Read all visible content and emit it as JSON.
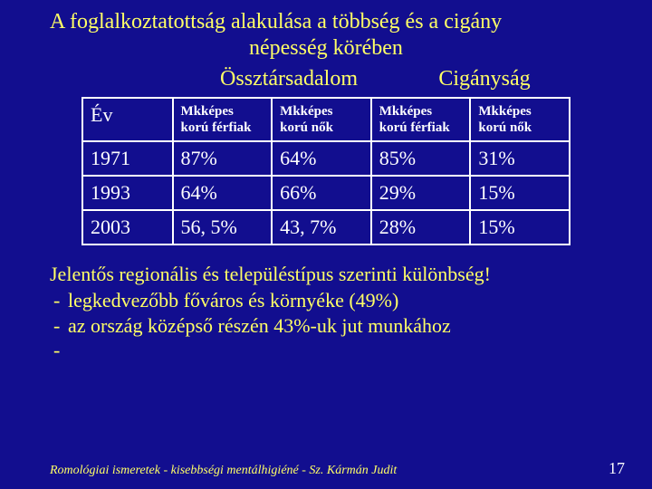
{
  "colors": {
    "slide_bg": "#120e8f",
    "title_color": "#ffff66",
    "text_color": "#ffff66",
    "group_header_color": "#ffff66",
    "table_border": "#ffffff",
    "table_header_text": "#ffffff",
    "table_cell_text": "#ffffff",
    "footer_color": "#ffff66",
    "pageno_color": "#ffffff"
  },
  "title": {
    "line1": "A foglalkoztatottság alakulása a többség és a cigány",
    "line2": "népesség körében"
  },
  "group_headers": {
    "g1": "Össztársadalom",
    "g2": "Cigányság"
  },
  "table": {
    "columns": [
      "Év",
      "Mkképes korú férfiak",
      "Mkképes korú nők",
      "Mkképes korú férfiak",
      "Mkképes korú nők"
    ],
    "rows": [
      [
        "1971",
        "87%",
        "64%",
        "85%",
        "31%"
      ],
      [
        "1993",
        "64%",
        "66%",
        "29%",
        "15%"
      ],
      [
        "2003",
        "56, 5%",
        "43, 7%",
        "28%",
        "15%"
      ]
    ]
  },
  "body": {
    "headline": "Jelentős regionális és településtípus szerinti különbség!",
    "bullets": [
      "legkedvezőbb főváros és környéke (49%)",
      "az ország középső részén 43%-uk jut munkához",
      ""
    ]
  },
  "footer": {
    "text": "Romológiai ismeretek - kisebbségi mentálhigiéné   -   Sz. Kármán Judit",
    "pageno": "17"
  }
}
